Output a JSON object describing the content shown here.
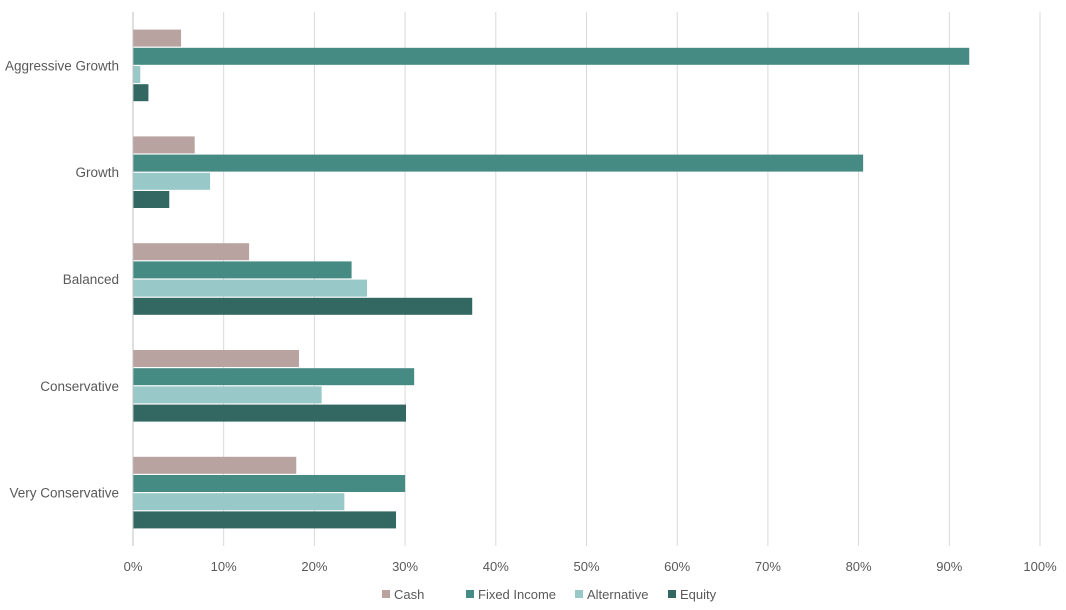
{
  "chart_data": {
    "type": "bar",
    "orientation": "horizontal",
    "categories": [
      "Aggressive Growth",
      "Growth",
      "Balanced",
      "Conservative",
      "Very Conservative"
    ],
    "series": [
      {
        "name": "Cash",
        "color": "#b9a3a1",
        "values": [
          5.3,
          6.8,
          12.8,
          18.3,
          18.0
        ]
      },
      {
        "name": "Fixed Income",
        "color": "#468a84",
        "values": [
          92.2,
          80.5,
          24.1,
          31.0,
          30.0
        ]
      },
      {
        "name": "Alternative",
        "color": "#98c8c8",
        "values": [
          0.8,
          8.5,
          25.8,
          20.8,
          23.3
        ]
      },
      {
        "name": "Equity",
        "color": "#336762",
        "values": [
          1.7,
          4.0,
          37.4,
          30.1,
          29.0
        ]
      }
    ],
    "x_ticks": [
      "0%",
      "10%",
      "20%",
      "30%",
      "40%",
      "50%",
      "60%",
      "70%",
      "80%",
      "90%",
      "100%"
    ],
    "xlim": [
      0,
      100
    ],
    "grid": "vertical",
    "legend": "bottom-center",
    "title": "",
    "xlabel": "",
    "ylabel": ""
  }
}
